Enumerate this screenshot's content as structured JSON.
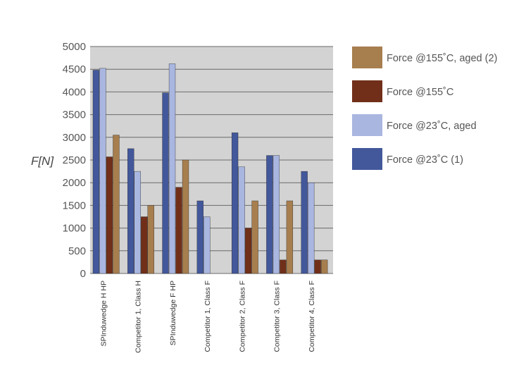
{
  "chart_data": {
    "type": "bar",
    "ylabel": "F[N]",
    "ylim": [
      0,
      5000
    ],
    "ytick_step": 500,
    "grid": true,
    "legend_position": "right",
    "categories": [
      "SPInduwedge H HP",
      "Competitor 1, Class H",
      "SPInduwedge F HP",
      "Competitor 1, Class F",
      "Competitor 2, Class F",
      "Competitor 3, Class F",
      "Competitor 4, Class F"
    ],
    "series": [
      {
        "name": "Force @23˚C (1)",
        "color": "#43589b",
        "values": [
          4480,
          2750,
          3980,
          1600,
          3100,
          2600,
          2250
        ]
      },
      {
        "name": "Force @23˚C, aged",
        "color": "#a9b6e0",
        "values": [
          4520,
          2250,
          4620,
          1250,
          2350,
          2600,
          2000
        ]
      },
      {
        "name": "Force @155˚C",
        "color": "#712f19",
        "values": [
          2570,
          1250,
          1900,
          0,
          1000,
          300,
          300
        ]
      },
      {
        "name": "Force @155˚C, aged (2)",
        "color": "#a77e4e",
        "values": [
          3050,
          1500,
          2500,
          0,
          1600,
          1600,
          300
        ]
      }
    ]
  }
}
